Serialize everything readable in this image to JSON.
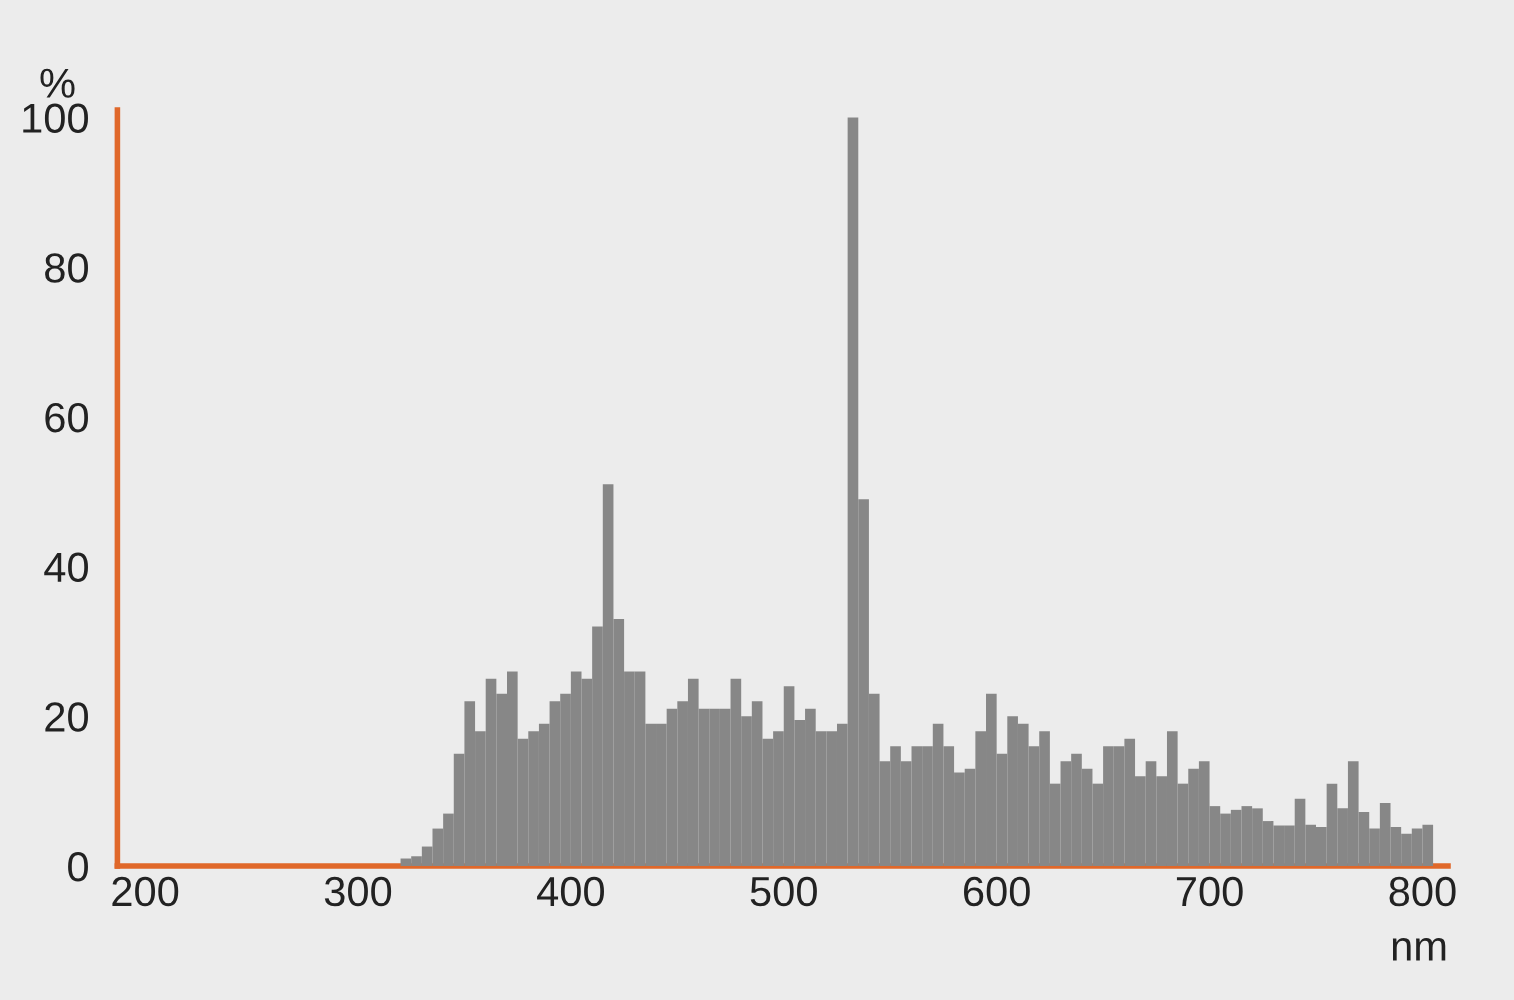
{
  "chart_data": {
    "type": "histogram",
    "ylabel": "%",
    "xlabel": "nm",
    "bins": [
      320,
      325,
      330,
      335,
      340,
      345,
      350,
      355,
      360,
      365,
      370,
      375,
      380,
      385,
      390,
      395,
      400,
      405,
      410,
      415,
      420,
      425,
      430,
      435,
      440,
      445,
      450,
      455,
      460,
      465,
      470,
      475,
      480,
      485,
      490,
      495,
      500,
      505,
      510,
      515,
      520,
      525,
      530,
      535,
      540,
      545,
      550,
      555,
      560,
      565,
      570,
      575,
      580,
      585,
      590,
      595,
      600,
      605,
      610,
      615,
      620,
      625,
      630,
      635,
      640,
      645,
      650,
      655,
      660,
      665,
      670,
      675,
      680,
      685,
      690,
      695,
      700,
      705,
      710,
      715,
      720,
      725,
      730,
      735,
      740,
      745,
      750,
      755,
      760,
      765,
      770,
      775,
      780,
      785,
      790,
      795,
      800,
      805
    ],
    "values": [
      1,
      1.3,
      2.6,
      5,
      7,
      15,
      22,
      18,
      25,
      23,
      26,
      17,
      18,
      19,
      22,
      23,
      26,
      25,
      32,
      51,
      33,
      26,
      26,
      19,
      19,
      21,
      22,
      25,
      21,
      21,
      21,
      25,
      20,
      22,
      17,
      18,
      24,
      19.5,
      21,
      18,
      18,
      19,
      100,
      49,
      23,
      14,
      16,
      14,
      16,
      16,
      19,
      16,
      12.5,
      13,
      18,
      23,
      15,
      20,
      19,
      16,
      18,
      11,
      14,
      15,
      13,
      11,
      16,
      16,
      17,
      12,
      14,
      12,
      18,
      11,
      13,
      14,
      8,
      7,
      7.5,
      8,
      7.7,
      6,
      5.4,
      5.4,
      9,
      5.5,
      5.2,
      11,
      7.7,
      14,
      7.2,
      5,
      8.4,
      5.2,
      4.3,
      5,
      5.5
    ],
    "color": "#878787",
    "xlim": [
      187,
      812
    ],
    "ylim": [
      0,
      101
    ],
    "xticks": [
      200,
      300,
      400,
      500,
      600,
      700,
      800
    ],
    "yticks": [
      0,
      20,
      40,
      60,
      80,
      100
    ],
    "grid": false
  }
}
